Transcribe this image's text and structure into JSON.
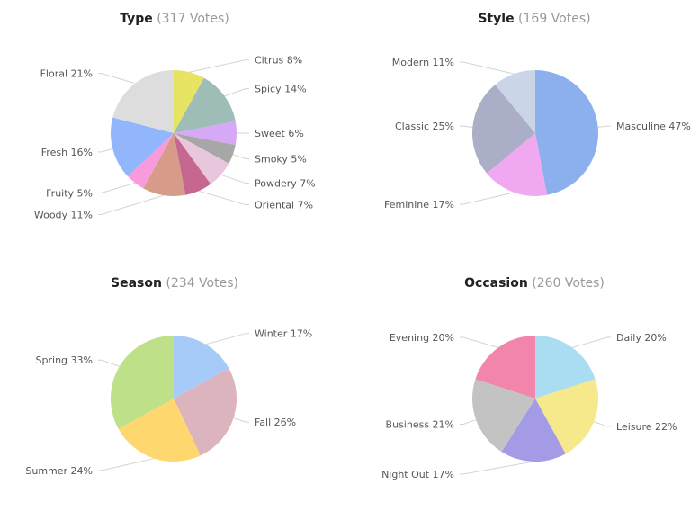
{
  "chart_data": [
    {
      "type": "pie",
      "title": "Type",
      "subtitle": "(317 Votes)",
      "slices": [
        {
          "label": "Citrus",
          "value": 8,
          "color": "#e8e463"
        },
        {
          "label": "Spicy",
          "value": 14,
          "color": "#9dbdb6"
        },
        {
          "label": "Sweet",
          "value": 6,
          "color": "#d5a9f5"
        },
        {
          "label": "Smoky",
          "value": 5,
          "color": "#a7a7a7"
        },
        {
          "label": "Powdery",
          "value": 7,
          "color": "#e8c6dc"
        },
        {
          "label": "Oriental",
          "value": 7,
          "color": "#c6678f"
        },
        {
          "label": "Woody",
          "value": 11,
          "color": "#d79b8a"
        },
        {
          "label": "Fruity",
          "value": 5,
          "color": "#f79bdc"
        },
        {
          "label": "Fresh",
          "value": 16,
          "color": "#92b6fb"
        },
        {
          "label": "Floral",
          "value": 21,
          "color": "#dddddd"
        }
      ]
    },
    {
      "type": "pie",
      "title": "Style",
      "subtitle": "(169 Votes)",
      "slices": [
        {
          "label": "Masculine",
          "value": 47,
          "color": "#8cb0ee"
        },
        {
          "label": "Feminine",
          "value": 17,
          "color": "#f0a8f0"
        },
        {
          "label": "Classic",
          "value": 25,
          "color": "#aaaec6"
        },
        {
          "label": "Modern",
          "value": 11,
          "color": "#cad6e8"
        }
      ]
    },
    {
      "type": "pie",
      "title": "Season",
      "subtitle": "(234 Votes)",
      "slices": [
        {
          "label": "Winter",
          "value": 17,
          "color": "#a7cbf8"
        },
        {
          "label": "Fall",
          "value": 26,
          "color": "#dbb4bd"
        },
        {
          "label": "Summer",
          "value": 24,
          "color": "#fed86f"
        },
        {
          "label": "Spring",
          "value": 33,
          "color": "#bde088"
        }
      ]
    },
    {
      "type": "pie",
      "title": "Occasion",
      "subtitle": "(260 Votes)",
      "slices": [
        {
          "label": "Daily",
          "value": 20,
          "color": "#aadcf2"
        },
        {
          "label": "Leisure",
          "value": 22,
          "color": "#f5e98b"
        },
        {
          "label": "Night Out",
          "value": 17,
          "color": "#a39be6"
        },
        {
          "label": "Business",
          "value": 21,
          "color": "#c3c3c3"
        },
        {
          "label": "Evening",
          "value": 20,
          "color": "#f185ab"
        }
      ]
    }
  ]
}
